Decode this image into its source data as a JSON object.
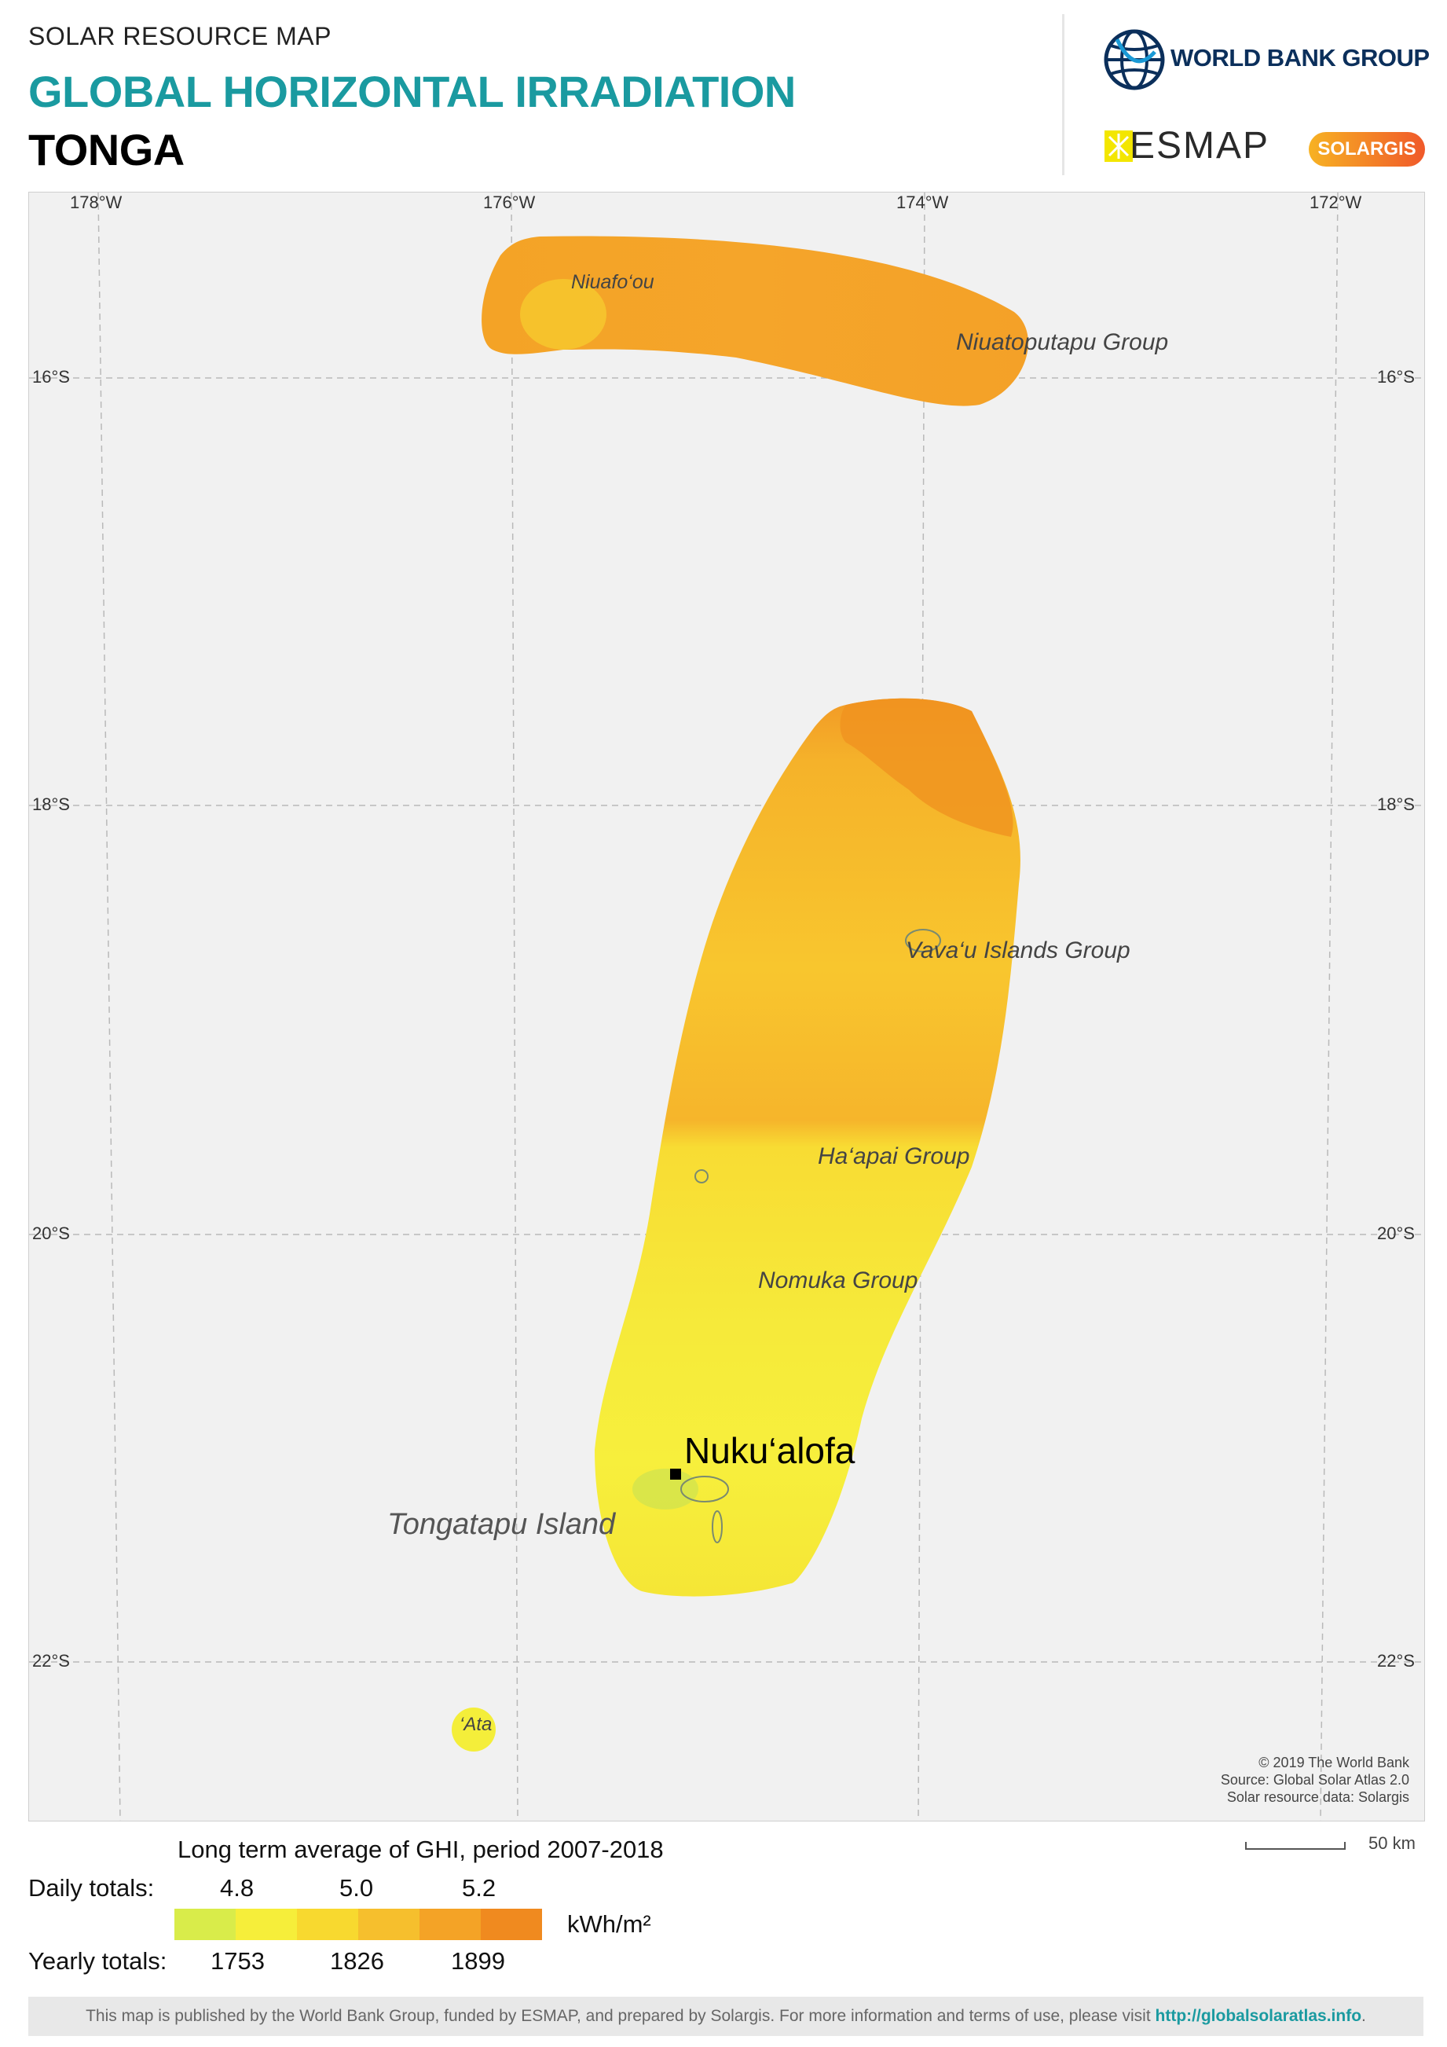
{
  "header": {
    "supertitle": "SOLAR RESOURCE MAP",
    "title": "GLOBAL HORIZONTAL IRRADIATION",
    "country": "TONGA"
  },
  "logos": {
    "wbg": "WORLD BANK GROUP",
    "esmap": "ESMAP",
    "solargis": "SOLARGIS"
  },
  "map": {
    "lon_ticks": [
      "178°W",
      "176°W",
      "174°W",
      "172°W"
    ],
    "lat_ticks": [
      "16°S",
      "18°S",
      "20°S",
      "22°S"
    ],
    "places": {
      "niuafoou": "Niuafo‘ou",
      "niuatoputapu": "Niuatoputapu Group",
      "vavau": "Vava‘u Islands Group",
      "haapai": "Ha‘apai Group",
      "nomuka": "Nomuka Group",
      "capital": "Nuku‘alofa",
      "tongatapu": "Tongatapu Island",
      "ata": "‘Ata"
    },
    "credits": [
      "© 2019 The World Bank",
      "Source: Global Solar Atlas 2.0",
      "Solar resource data: Solargis"
    ],
    "scale_label": "50 km"
  },
  "legend": {
    "title": "Long term average of GHI, period 2007-2018",
    "daily_label": "Daily totals:",
    "daily_values": [
      "4.8",
      "5.0",
      "5.2"
    ],
    "yearly_label": "Yearly totals:",
    "yearly_values": [
      "1753",
      "1826",
      "1899"
    ],
    "unit": "kWh/m²",
    "colors": [
      "#d9ec4a",
      "#f6ee3a",
      "#f8d92f",
      "#f6bf2d",
      "#f4a326",
      "#f08a1f"
    ]
  },
  "footer": {
    "text": "This map is published by the World Bank Group, funded by ESMAP, and prepared by Solargis. For more information and terms of use, please visit",
    "link": "http://globalsolaratlas.info",
    "end": "."
  }
}
